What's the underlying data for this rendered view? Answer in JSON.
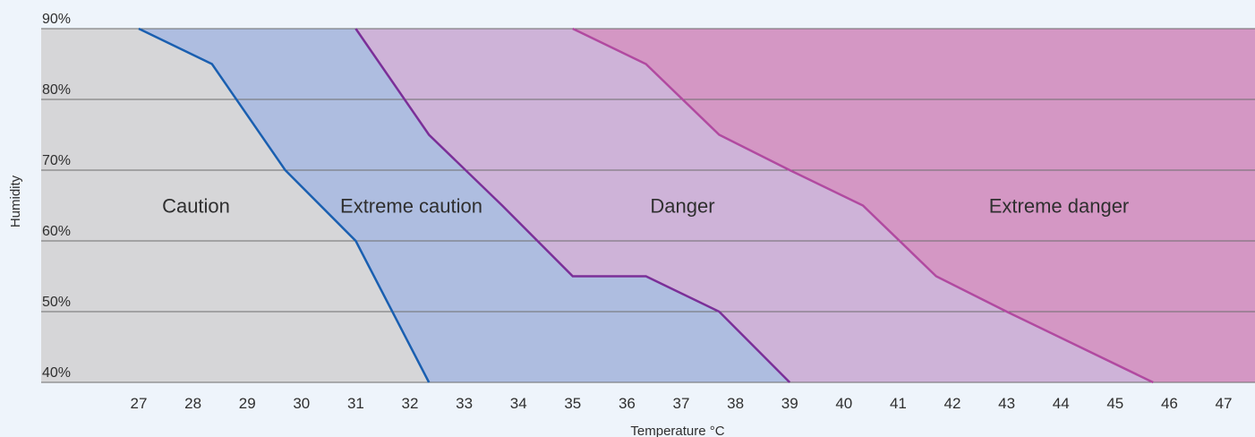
{
  "chart_data": {
    "type": "area",
    "xlabel": "Temperature °C",
    "ylabel": "Humidity",
    "xlim": [
      26,
      47.5
    ],
    "ylim": [
      40,
      90
    ],
    "x_ticks": [
      "27",
      "28",
      "29",
      "30",
      "31",
      "32",
      "33",
      "34",
      "35",
      "36",
      "37",
      "38",
      "39",
      "40",
      "41",
      "42",
      "43",
      "44",
      "45",
      "46",
      "47"
    ],
    "y_ticks": [
      "40%",
      "50%",
      "60%",
      "70%",
      "80%",
      "90%"
    ],
    "y_tick_values": [
      40,
      50,
      60,
      70,
      80,
      90
    ],
    "grid": "horizontal",
    "zones": [
      {
        "name": "Caution",
        "color": "#d6d6d8"
      },
      {
        "name": "Extreme caution",
        "color": "#aebde0"
      },
      {
        "name": "Danger",
        "color": "#ceb3d8"
      },
      {
        "name": "Extreme danger",
        "color": "#d497c4"
      }
    ],
    "label_humidity": 65,
    "boundaries": [
      {
        "between": "Caution / Extreme caution",
        "color": "#1a5fb0",
        "points": [
          [
            27,
            90
          ],
          [
            28.35,
            85
          ],
          [
            29.7,
            70
          ],
          [
            31,
            60
          ],
          [
            32.35,
            40
          ]
        ]
      },
      {
        "between": "Extreme caution / Danger",
        "color": "#7b2f98",
        "points": [
          [
            31,
            90
          ],
          [
            32.35,
            75
          ],
          [
            33.7,
            65
          ],
          [
            35,
            55
          ],
          [
            36.35,
            55
          ],
          [
            37.7,
            50
          ],
          [
            39,
            40
          ]
        ]
      },
      {
        "between": "Danger / Extreme danger",
        "color": "#b14aa0",
        "points": [
          [
            35,
            90
          ],
          [
            36.35,
            85
          ],
          [
            37.7,
            75
          ],
          [
            39,
            70
          ],
          [
            40.35,
            65
          ],
          [
            41.7,
            55
          ],
          [
            43,
            50
          ],
          [
            45.7,
            40
          ]
        ]
      }
    ]
  }
}
